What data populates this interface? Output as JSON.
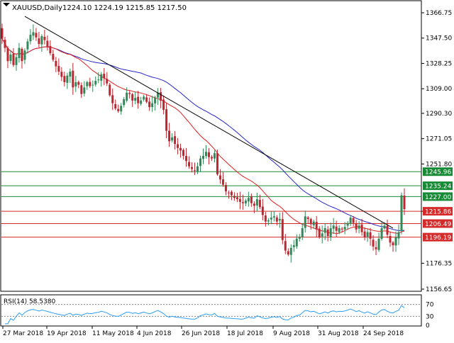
{
  "header": {
    "symbol": "XAUUSD,Daily",
    "ohlc": "1224.10 1224.19 1215.85 1217.50"
  },
  "rsi_label": "RSI(14) 58.5380",
  "colors": {
    "up_candle": "#2e8b57",
    "down_candle": "#c0262f",
    "ma_fast": "#e02020",
    "ma_slow": "#2626c8",
    "trendline": "#000000",
    "res_line": "#1a8a3a",
    "sup_line": "#d42a2a",
    "rsi": "#2a9df4",
    "label_green": "#178a36",
    "label_red": "#d42a2a"
  },
  "chart_data": {
    "type": "candlestick",
    "title": "XAUUSD,Daily",
    "y_ticks": [
      1366.75,
      1347.5,
      1328.25,
      1309.0,
      1290.3,
      1271.05,
      1251.8,
      1215.85,
      1176.35,
      1156.65
    ],
    "y_range": [
      1156.65,
      1366.75
    ],
    "x_tick_labels": [
      "27 Mar 2018",
      "19 Apr 2018",
      "11 May 2018",
      "4 Jun 2018",
      "26 Jun 2018",
      "18 Jul 2018",
      "9 Aug 2018",
      "31 Aug 2018",
      "24 Sep 2018"
    ],
    "levels": [
      {
        "value": 1245.96,
        "label": "1245.96",
        "type": "resistance"
      },
      {
        "value": 1235.24,
        "label": "1235.24",
        "type": "resistance"
      },
      {
        "value": 1227.0,
        "label": "1227.00",
        "type": "resistance"
      },
      {
        "value": 1215.86,
        "label": "1215.86",
        "type": "support"
      },
      {
        "value": 1206.49,
        "label": "1206.49",
        "type": "support"
      },
      {
        "value": 1196.19,
        "label": "1196.19",
        "type": "support"
      }
    ],
    "trendline": [
      {
        "i": 8,
        "v": 1364
      },
      {
        "i": 138,
        "v": 1203
      }
    ],
    "closes": [
      1347,
      1340,
      1330,
      1335,
      1327,
      1333,
      1340,
      1330,
      1338,
      1345,
      1350,
      1352,
      1348,
      1343,
      1349,
      1346,
      1341,
      1336,
      1331,
      1326,
      1322,
      1318,
      1314,
      1319,
      1322,
      1310,
      1314,
      1312,
      1305,
      1310,
      1314,
      1311,
      1312,
      1315,
      1316,
      1320,
      1317,
      1313,
      1304,
      1298,
      1294,
      1292,
      1296,
      1301,
      1306,
      1305,
      1300,
      1302,
      1298,
      1300,
      1303,
      1299,
      1295,
      1298,
      1302,
      1306,
      1300,
      1293,
      1277,
      1269,
      1272,
      1267,
      1264,
      1262,
      1258,
      1254,
      1250,
      1248,
      1247,
      1250,
      1256,
      1258,
      1261,
      1257,
      1256,
      1260,
      1244,
      1240,
      1236,
      1231,
      1230,
      1228,
      1226,
      1225,
      1223,
      1222,
      1224,
      1226,
      1222,
      1220,
      1225,
      1219,
      1213,
      1208,
      1209,
      1211,
      1212,
      1208,
      1210,
      1194,
      1186,
      1183,
      1188,
      1190,
      1195,
      1196,
      1203,
      1212,
      1210,
      1206,
      1208,
      1202,
      1196,
      1199,
      1203,
      1197,
      1203,
      1205,
      1201,
      1203,
      1202,
      1204,
      1207,
      1211,
      1207,
      1202,
      1205,
      1200,
      1196,
      1200,
      1195,
      1189,
      1187,
      1195,
      1203,
      1205,
      1198,
      1192,
      1190,
      1196,
      1200,
      1228,
      1217.5
    ],
    "rsi": {
      "name": "RSI(14)",
      "last": 58.538,
      "levels": [
        70,
        30
      ],
      "ticks": [
        70,
        30,
        0
      ],
      "range": [
        0,
        100
      ]
    }
  }
}
